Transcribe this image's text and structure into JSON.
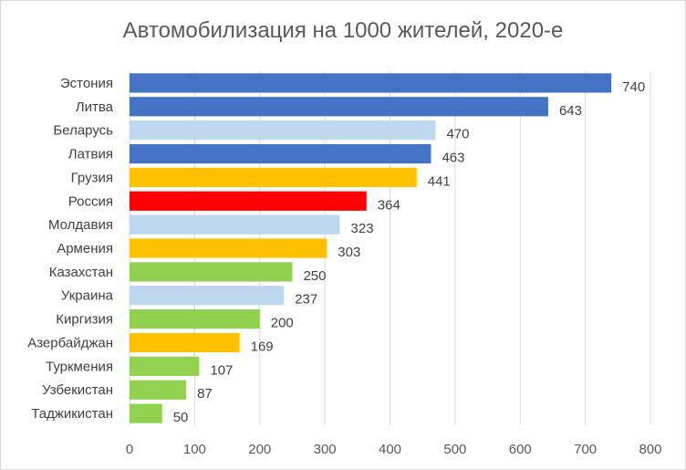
{
  "chart_data": {
    "type": "bar",
    "orientation": "horizontal",
    "title": "Автомобилизация на 1000 жителей, 2020-е",
    "categories": [
      "Эстония",
      "Литва",
      "Беларусь",
      "Латвия",
      "Грузия",
      "Россия",
      "Молдавия",
      "Армения",
      "Казахстан",
      "Украина",
      "Киргизия",
      "Азербайджан",
      "Туркмения",
      "Узбекистан",
      "Таджикистан"
    ],
    "values": [
      740,
      643,
      470,
      463,
      441,
      364,
      323,
      303,
      250,
      237,
      200,
      169,
      107,
      87,
      50
    ],
    "bar_colors": [
      "#4472c4",
      "#4472c4",
      "#bdd7ee",
      "#4472c4",
      "#ffc000",
      "#ff0000",
      "#bdd7ee",
      "#ffc000",
      "#92d050",
      "#bdd7ee",
      "#92d050",
      "#ffc000",
      "#92d050",
      "#92d050",
      "#92d050"
    ],
    "xlim": [
      0,
      800
    ],
    "xticks": [
      0,
      100,
      200,
      300,
      400,
      500,
      600,
      700,
      800
    ],
    "grid": "vertical",
    "legend": "none",
    "data_labels": true
  }
}
